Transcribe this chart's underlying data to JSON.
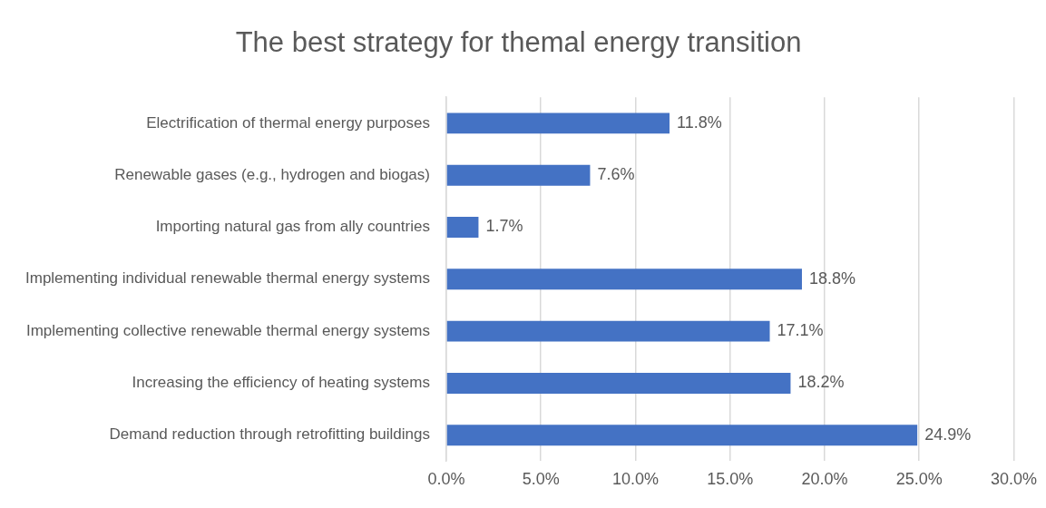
{
  "chart_data": {
    "type": "bar",
    "orientation": "horizontal",
    "title": "The best strategy for themal energy transition",
    "categories": [
      "Electrification of thermal energy purposes",
      "Renewable gases (e.g., hydrogen and biogas)",
      "Importing natural gas from ally countries",
      "Implementing individual renewable thermal energy systems",
      "Implementing collective renewable thermal energy systems",
      "Increasing the efficiency of heating systems",
      "Demand reduction through retrofitting buildings"
    ],
    "values": [
      11.8,
      7.6,
      1.7,
      18.8,
      17.1,
      18.2,
      24.9
    ],
    "value_labels": [
      "11.8%",
      "7.6%",
      "1.7%",
      "18.8%",
      "17.1%",
      "18.2%",
      "24.9%"
    ],
    "color": "#4472c4",
    "xlim": [
      0,
      30
    ],
    "xticks": [
      {
        "value": 0,
        "label": "0.0%"
      },
      {
        "value": 5,
        "label": "5.0%"
      },
      {
        "value": 10,
        "label": "10.0%"
      },
      {
        "value": 15,
        "label": "15.0%"
      },
      {
        "value": 20,
        "label": "20.0%"
      },
      {
        "value": 25,
        "label": "25.0%"
      },
      {
        "value": 30,
        "label": "30.0%"
      }
    ],
    "grid": "x",
    "legend": false
  }
}
